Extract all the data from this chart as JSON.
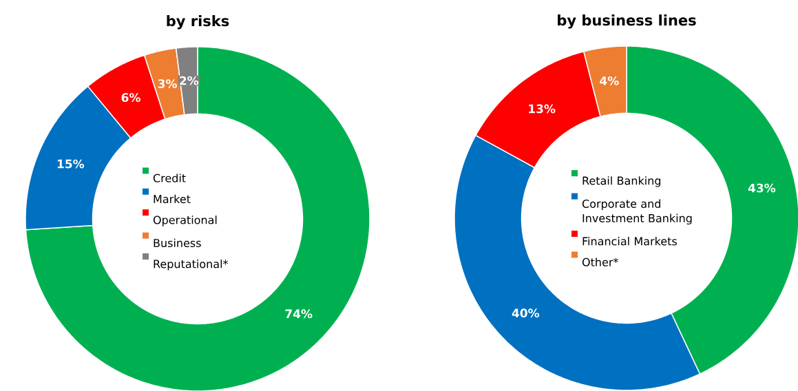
{
  "chart_data": [
    {
      "type": "donut",
      "title": "by risks",
      "categories": [
        "Credit",
        "Market",
        "Operational",
        "Business",
        "Reputational*"
      ],
      "values": [
        74,
        15,
        6,
        3,
        2
      ],
      "colors": [
        "#00b050",
        "#0070c0",
        "#ff0000",
        "#ed7d31",
        "#808080"
      ],
      "value_labels": [
        "74%",
        "15%",
        "6%",
        "3%",
        "2%"
      ],
      "legend": "center"
    },
    {
      "type": "donut",
      "title": "by business lines",
      "categories": [
        "Retail Banking",
        "Corporate and Investment Banking",
        "Financial Markets",
        "Other*"
      ],
      "values": [
        43,
        40,
        13,
        4
      ],
      "colors": [
        "#00b050",
        "#0070c0",
        "#ff0000",
        "#ed7d31"
      ],
      "value_labels": [
        "43%",
        "40%",
        "13%",
        "4%"
      ],
      "legend": "center"
    }
  ]
}
